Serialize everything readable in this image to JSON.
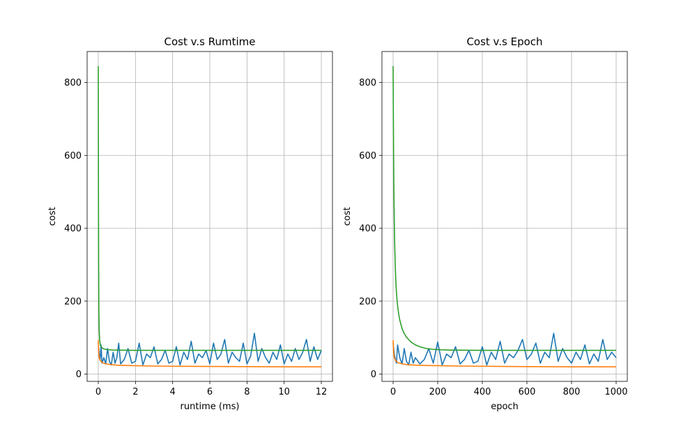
{
  "chart_data": [
    {
      "type": "line",
      "title": "Cost v.s Rumtime",
      "xlabel": "runtime (ms)",
      "ylabel": "cost",
      "xlim": [
        -0.6,
        12.6
      ],
      "ylim": [
        -20,
        885
      ],
      "xticks": [
        0,
        2,
        4,
        6,
        8,
        10,
        12
      ],
      "yticks": [
        0,
        200,
        400,
        600,
        800
      ],
      "grid": true,
      "series": [
        {
          "color": "#2ca02c",
          "x": [
            0,
            0.01,
            0.02,
            0.03,
            0.05,
            0.08,
            0.12,
            0.2,
            0.3,
            0.5,
            0.8,
            1.2,
            2,
            4,
            6,
            8,
            10,
            12
          ],
          "y": [
            845,
            500,
            300,
            180,
            120,
            90,
            78,
            72,
            69,
            67,
            66,
            65.5,
            65,
            65,
            65,
            65,
            65,
            65
          ]
        },
        {
          "color": "#ff7f0e",
          "x": [
            0,
            0.02,
            0.05,
            0.1,
            0.2,
            0.4,
            0.7,
            1.0,
            1.5,
            2,
            3,
            4,
            6,
            8,
            10,
            12
          ],
          "y": [
            93,
            60,
            45,
            38,
            32,
            28,
            26,
            24.5,
            23.5,
            23,
            22,
            21.5,
            21,
            20.5,
            20,
            20
          ]
        },
        {
          "color": "#1f77b4",
          "x": [
            0,
            0.05,
            0.1,
            0.15,
            0.2,
            0.3,
            0.4,
            0.5,
            0.6,
            0.7,
            0.8,
            0.9,
            1.0,
            1.1,
            1.2,
            1.4,
            1.6,
            1.8,
            2.0,
            2.2,
            2.4,
            2.6,
            2.8,
            3.0,
            3.2,
            3.4,
            3.6,
            3.8,
            4.0,
            4.2,
            4.4,
            4.6,
            4.8,
            5.0,
            5.2,
            5.4,
            5.6,
            5.8,
            6.0,
            6.2,
            6.4,
            6.6,
            6.8,
            7.0,
            7.2,
            7.4,
            7.6,
            7.8,
            8.0,
            8.2,
            8.4,
            8.6,
            8.8,
            9.0,
            9.2,
            9.4,
            9.6,
            9.8,
            10.0,
            10.2,
            10.4,
            10.6,
            10.8,
            11.0,
            11.2,
            11.4,
            11.6,
            11.8,
            12.0
          ],
          "y": [
            85,
            55,
            40,
            80,
            30,
            45,
            28,
            70,
            35,
            25,
            60,
            30,
            45,
            85,
            28,
            40,
            70,
            30,
            35,
            85,
            25,
            55,
            45,
            75,
            28,
            40,
            65,
            30,
            35,
            75,
            25,
            60,
            40,
            90,
            30,
            55,
            45,
            65,
            28,
            85,
            40,
            55,
            95,
            30,
            60,
            45,
            35,
            85,
            28,
            50,
            112,
            35,
            70,
            45,
            30,
            60,
            40,
            80,
            28,
            55,
            35,
            70,
            40,
            60,
            95,
            35,
            75,
            40,
            65
          ]
        }
      ]
    },
    {
      "type": "line",
      "title": "Cost v.s Epoch",
      "xlabel": "epoch",
      "ylabel": "cost",
      "xlim": [
        -50,
        1050
      ],
      "ylim": [
        -20,
        885
      ],
      "xticks": [
        0,
        200,
        400,
        600,
        800,
        1000
      ],
      "yticks": [
        0,
        200,
        400,
        600,
        800
      ],
      "grid": true,
      "series": [
        {
          "color": "#2ca02c",
          "x": [
            0,
            1,
            2,
            3,
            5,
            7,
            10,
            13,
            16,
            20,
            25,
            30,
            40,
            50,
            60,
            80,
            100,
            120,
            150,
            180,
            220,
            260,
            300,
            400,
            500,
            600,
            700,
            800,
            900,
            1000
          ],
          "y": [
            845,
            720,
            620,
            540,
            430,
            360,
            290,
            245,
            215,
            188,
            165,
            148,
            125,
            111,
            101,
            88,
            80,
            75,
            70,
            68,
            66.5,
            65.8,
            65.5,
            65,
            65,
            65,
            65,
            65,
            65,
            65
          ]
        },
        {
          "color": "#ff7f0e",
          "x": [
            0,
            2,
            5,
            10,
            20,
            40,
            60,
            100,
            150,
            200,
            300,
            400,
            500,
            600,
            800,
            1000
          ],
          "y": [
            93,
            60,
            45,
            38,
            32,
            28,
            26,
            24.5,
            23.5,
            23,
            22,
            21.5,
            21,
            20.5,
            20,
            20
          ]
        },
        {
          "color": "#1f77b4",
          "x": [
            0,
            5,
            10,
            15,
            20,
            30,
            40,
            50,
            60,
            70,
            80,
            90,
            100,
            120,
            140,
            160,
            180,
            200,
            220,
            240,
            260,
            280,
            300,
            320,
            340,
            360,
            380,
            400,
            420,
            440,
            460,
            480,
            500,
            520,
            540,
            560,
            580,
            600,
            620,
            640,
            660,
            680,
            700,
            720,
            740,
            760,
            780,
            800,
            820,
            840,
            860,
            880,
            900,
            920,
            940,
            960,
            980,
            1000
          ],
          "y": [
            85,
            55,
            40,
            30,
            80,
            45,
            28,
            70,
            35,
            25,
            60,
            30,
            45,
            28,
            40,
            70,
            30,
            88,
            25,
            55,
            45,
            75,
            28,
            40,
            65,
            30,
            35,
            75,
            25,
            60,
            40,
            90,
            30,
            55,
            45,
            65,
            95,
            40,
            55,
            85,
            30,
            60,
            45,
            112,
            35,
            70,
            45,
            30,
            60,
            40,
            80,
            28,
            55,
            35,
            95,
            40,
            60,
            45
          ]
        }
      ]
    }
  ]
}
